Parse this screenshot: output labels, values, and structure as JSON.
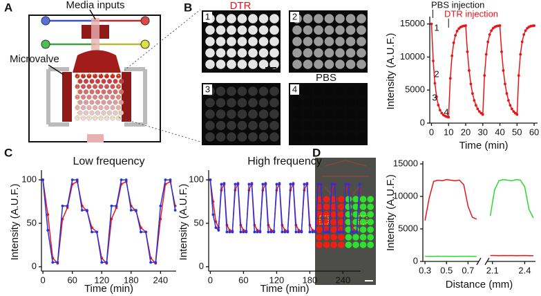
{
  "panels": [
    "A",
    "B",
    "C",
    "D"
  ],
  "panel_a": {
    "media_inputs": "Media inputs",
    "microvalve": "Microvalve"
  },
  "panel_b": {
    "dtr": "DTR",
    "pbs": "PBS",
    "image_labels": [
      "1",
      "2",
      "3",
      "4"
    ]
  },
  "chart_data": [
    {
      "type": "line",
      "xlabel": "Time (min)",
      "ylabel": "Intensity (A.U.F.)",
      "x": [
        0,
        1,
        2,
        3,
        4,
        5,
        6,
        7,
        8,
        9,
        10,
        11,
        12,
        13,
        14,
        15,
        16,
        17,
        18,
        19,
        20,
        21,
        22,
        23,
        24,
        25,
        26,
        27,
        28,
        29,
        30,
        31,
        32,
        33,
        34,
        35,
        36,
        37,
        38,
        39,
        40,
        41,
        42,
        43,
        44,
        45,
        46,
        47,
        48,
        49,
        50,
        51,
        52,
        53,
        54,
        55,
        56,
        57,
        58,
        59,
        60
      ],
      "series": [
        {
          "color": "#e8141a",
          "values": [
            15000,
            9420,
            6030,
            3970,
            2720,
            1960,
            1510,
            1230,
            1060,
            960,
            900,
            6770,
            10190,
            12160,
            13280,
            13930,
            14300,
            14520,
            14640,
            14710,
            14750,
            10800,
            7960,
            5930,
            4480,
            3440,
            2690,
            2150,
            1770,
            1500,
            1300,
            7200,
            10400,
            12300,
            13400,
            14000,
            14350,
            14550,
            14660,
            14720,
            14750,
            10800,
            7960,
            5930,
            4480,
            3440,
            2690,
            2150,
            1770,
            1500,
            1300,
            7200,
            10400,
            12300,
            13400,
            14000,
            14350,
            14550,
            14660,
            14720,
            14750
          ]
        }
      ],
      "xlim": [
        -1,
        62
      ],
      "ylim": [
        0,
        15700
      ],
      "xticks": [
        0,
        10,
        20,
        30,
        40,
        50,
        60
      ],
      "yticks": [
        0,
        5000,
        10000,
        15000
      ],
      "markers": true,
      "annotations": [
        {
          "text": "PBS injection",
          "color": "#111111"
        },
        {
          "text": "DTR injection",
          "color": "#e8141a"
        }
      ],
      "point_labels": [
        "1",
        "2",
        "3",
        "4"
      ]
    },
    {
      "type": "line",
      "title": "Low frequency",
      "xlabel": "Time (min)",
      "ylabel": "Intensity (A.U.F.)",
      "x": [
        0,
        10,
        20,
        30,
        40,
        50,
        60,
        70,
        80,
        90,
        100,
        110,
        120,
        130,
        140,
        150,
        160,
        170,
        180,
        190,
        200,
        210,
        220,
        230,
        240,
        250,
        260,
        270
      ],
      "series": [
        {
          "color": "#e8141a",
          "values": [
            100,
            60,
            10,
            4,
            55,
            68,
            95,
            98,
            70,
            64,
            45,
            40,
            10,
            4,
            55,
            68,
            95,
            98,
            70,
            64,
            45,
            40,
            10,
            4,
            55,
            95,
            98,
            70
          ]
        },
        {
          "color": "#2433e0",
          "values": [
            100,
            42,
            5,
            5,
            70,
            70,
            100,
            100,
            65,
            65,
            40,
            40,
            5,
            5,
            70,
            70,
            100,
            100,
            65,
            65,
            40,
            40,
            5,
            5,
            70,
            100,
            100,
            65
          ]
        }
      ],
      "xlim": [
        -3,
        272
      ],
      "ylim": [
        -5,
        108
      ],
      "xticks": [
        0,
        60,
        120,
        180,
        240
      ],
      "yticks": [
        0,
        50,
        100
      ],
      "markers": true
    },
    {
      "type": "line",
      "title": "High frequency",
      "xlabel": "Time (min)",
      "ylabel": "Intensity (A.U.F.)",
      "x": [
        0,
        5,
        10,
        15,
        20,
        25,
        30,
        35,
        40,
        45,
        50,
        55,
        60,
        65,
        70,
        75,
        80,
        85,
        90,
        95,
        100,
        105,
        110,
        115,
        120,
        125,
        130,
        135,
        140,
        145,
        150,
        155,
        160,
        165,
        170,
        175,
        180,
        185,
        190,
        195,
        200,
        205,
        210,
        215,
        220,
        225,
        230,
        235,
        240,
        245,
        250,
        255,
        260,
        265,
        270
      ],
      "series": [
        {
          "color": "#e8141a",
          "values": [
            100,
            75,
            52,
            45,
            88,
            96,
            48,
            42,
            41,
            88,
            96,
            48,
            42,
            41,
            88,
            96,
            48,
            42,
            41,
            88,
            96,
            48,
            42,
            41,
            88,
            96,
            48,
            42,
            41,
            88,
            96,
            48,
            42,
            41,
            88,
            96,
            48,
            42,
            41,
            88,
            96,
            48,
            42,
            41,
            88,
            96,
            48,
            42,
            41,
            88,
            96,
            48,
            42,
            41,
            88
          ]
        },
        {
          "color": "#2433e0",
          "values": [
            100,
            60,
            45,
            42,
            95,
            95,
            40,
            40,
            40,
            95,
            95,
            40,
            40,
            40,
            95,
            95,
            40,
            40,
            40,
            95,
            95,
            40,
            40,
            40,
            95,
            95,
            40,
            40,
            40,
            95,
            95,
            40,
            40,
            40,
            95,
            95,
            40,
            40,
            40,
            95,
            95,
            40,
            40,
            40,
            95,
            95,
            40,
            40,
            40,
            95,
            95,
            40,
            40,
            40,
            95
          ]
        }
      ],
      "xlim": [
        -3,
        272
      ],
      "ylim": [
        -5,
        108
      ],
      "xticks": [
        0,
        60,
        120,
        180,
        240
      ],
      "yticks": [
        0,
        50,
        100
      ],
      "markers": true
    },
    {
      "type": "line",
      "xlabel": "Distance (mm)",
      "ylabel": "Intensity (A.U.F.)",
      "x": [
        0.3,
        0.34,
        0.38,
        0.42,
        0.46,
        0.5,
        0.54,
        0.58,
        0.62,
        0.66,
        0.7,
        0.74,
        0.78,
        2.05,
        2.08,
        2.12,
        2.16,
        2.2,
        2.24,
        2.28,
        2.32,
        2.36,
        2.4,
        2.44,
        2.48
      ],
      "series": [
        {
          "color": "#e8141a",
          "values": [
            6300,
            9800,
            12300,
            12500,
            12400,
            12600,
            12500,
            12400,
            12500,
            11800,
            8500,
            6800,
            6500,
            null,
            900,
            900,
            880,
            900,
            890,
            900,
            880,
            890,
            900,
            880,
            870
          ]
        },
        {
          "color": "#29d92b",
          "values": [
            800,
            780,
            790,
            800,
            790,
            800,
            790,
            780,
            800,
            790,
            800,
            790,
            780,
            null,
            7000,
            11000,
            12400,
            12600,
            12500,
            12400,
            12600,
            12500,
            11500,
            8000,
            6700
          ]
        }
      ],
      "xlim": [
        0.28,
        2.5
      ],
      "xbreak": [
        0.8,
        2.05
      ],
      "ylim": [
        0,
        15000
      ],
      "xticks": [
        0.3,
        0.5,
        0.7,
        2.1,
        2.4
      ],
      "yticks": [
        0,
        5000,
        10000,
        15000
      ],
      "markers": false
    }
  ]
}
